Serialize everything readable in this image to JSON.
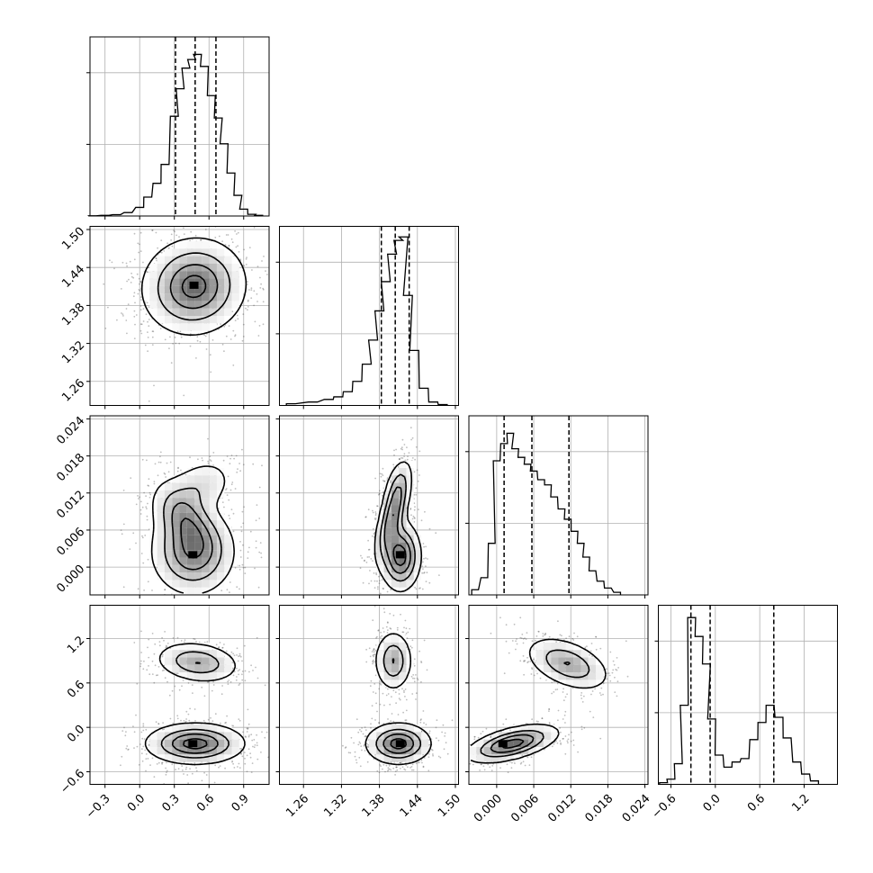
{
  "chart_data": {
    "type": "scatter",
    "layout": "corner",
    "grid": true,
    "legend": "none",
    "parameters": [
      {
        "ticks": [
          -0.3,
          0.0,
          0.3,
          0.6,
          0.9
        ],
        "tick_labels": [
          "−0.3",
          "0.0",
          "0.3",
          "0.6",
          "0.9"
        ],
        "range": [
          -0.43,
          1.12
        ],
        "quantiles": [
          0.31,
          0.48,
          0.66
        ],
        "hist": [
          [
            -0.41,
            0.001
          ],
          [
            -0.3,
            0.004
          ],
          [
            -0.2,
            0.008
          ],
          [
            -0.1,
            0.02
          ],
          [
            0.0,
            0.05
          ],
          [
            0.07,
            0.11
          ],
          [
            0.15,
            0.19
          ],
          [
            0.22,
            0.3
          ],
          [
            0.3,
            0.58
          ],
          [
            0.35,
            0.74
          ],
          [
            0.4,
            0.86
          ],
          [
            0.45,
            0.91
          ],
          [
            0.5,
            0.94
          ],
          [
            0.56,
            0.87
          ],
          [
            0.62,
            0.7
          ],
          [
            0.68,
            0.57
          ],
          [
            0.73,
            0.42
          ],
          [
            0.79,
            0.25
          ],
          [
            0.85,
            0.12
          ],
          [
            0.9,
            0.04
          ],
          [
            0.97,
            0.01
          ],
          [
            1.03,
            0.004
          ]
        ],
        "hist_ymax": 1.0
      },
      {
        "ticks": [
          1.26,
          1.32,
          1.38,
          1.44,
          1.5
        ],
        "tick_labels": [
          "1.26",
          "1.32",
          "1.38",
          "1.44",
          "1.50"
        ],
        "range": [
          1.222,
          1.505
        ],
        "quantiles": [
          1.383,
          1.405,
          1.427
        ],
        "hist": [
          [
            1.24,
            0.01
          ],
          [
            1.275,
            0.02
          ],
          [
            1.3,
            0.035
          ],
          [
            1.315,
            0.05
          ],
          [
            1.33,
            0.08
          ],
          [
            1.345,
            0.14
          ],
          [
            1.36,
            0.24
          ],
          [
            1.37,
            0.38
          ],
          [
            1.38,
            0.55
          ],
          [
            1.39,
            0.72
          ],
          [
            1.4,
            0.88
          ],
          [
            1.41,
            0.96
          ],
          [
            1.418,
            0.98
          ],
          [
            1.425,
            0.64
          ],
          [
            1.435,
            0.32
          ],
          [
            1.45,
            0.1
          ],
          [
            1.465,
            0.02
          ],
          [
            1.48,
            0.005
          ]
        ],
        "hist_ymax": 1.0
      },
      {
        "ticks": [
          0.0,
          0.006,
          0.012,
          0.018,
          0.024
        ],
        "tick_labels": [
          "0.000",
          "0.006",
          "0.012",
          "0.018",
          "0.024"
        ],
        "range": [
          -0.0045,
          0.0245
        ],
        "quantiles": [
          0.0012,
          0.0057,
          0.0117
        ],
        "hist": [
          [
            -0.0035,
            0.03
          ],
          [
            -0.002,
            0.1
          ],
          [
            -0.0008,
            0.3
          ],
          [
            0.0,
            0.78
          ],
          [
            0.0012,
            0.88
          ],
          [
            0.0022,
            0.94
          ],
          [
            0.003,
            0.85
          ],
          [
            0.004,
            0.8
          ],
          [
            0.005,
            0.76
          ],
          [
            0.006,
            0.72
          ],
          [
            0.0072,
            0.67
          ],
          [
            0.0083,
            0.64
          ],
          [
            0.0093,
            0.57
          ],
          [
            0.0105,
            0.5
          ],
          [
            0.0115,
            0.44
          ],
          [
            0.0126,
            0.37
          ],
          [
            0.0136,
            0.3
          ],
          [
            0.0145,
            0.22
          ],
          [
            0.0155,
            0.14
          ],
          [
            0.0168,
            0.08
          ],
          [
            0.018,
            0.04
          ],
          [
            0.0195,
            0.015
          ]
        ],
        "hist_ymax": 1.0
      },
      {
        "ticks": [
          -0.6,
          0.0,
          0.6,
          1.2
        ],
        "tick_labels": [
          "−0.6",
          "0.0",
          "0.6",
          "1.2"
        ],
        "range": [
          -0.77,
          1.65
        ],
        "quantiles": [
          -0.33,
          -0.07,
          0.79
        ],
        "hist": [
          [
            -0.7,
            0.01
          ],
          [
            -0.6,
            0.03
          ],
          [
            -0.5,
            0.12
          ],
          [
            -0.42,
            0.46
          ],
          [
            -0.32,
            0.97
          ],
          [
            -0.22,
            0.86
          ],
          [
            -0.12,
            0.7
          ],
          [
            -0.05,
            0.38
          ],
          [
            0.05,
            0.17
          ],
          [
            0.17,
            0.1
          ],
          [
            0.28,
            0.13
          ],
          [
            0.4,
            0.15
          ],
          [
            0.52,
            0.26
          ],
          [
            0.63,
            0.36
          ],
          [
            0.74,
            0.46
          ],
          [
            0.86,
            0.39
          ],
          [
            0.97,
            0.27
          ],
          [
            1.1,
            0.13
          ],
          [
            1.22,
            0.06
          ],
          [
            1.34,
            0.02
          ]
        ],
        "hist_ymax": 1.0
      }
    ],
    "pairs": [
      {
        "row": 1,
        "col": 0,
        "components": [
          {
            "cx": 0.47,
            "cy": 1.41,
            "sx": 0.2,
            "sy": 0.034,
            "rho": 0.05,
            "w": 1.0,
            "dens": [
              1.0,
              0.55,
              0.25,
              0.08
            ],
            "skew": 0.0
          }
        ],
        "contour_levels": [
          0.08,
          0.3,
          0.6,
          0.88
        ],
        "peaks": [
          [
            0.47,
            1.412
          ]
        ]
      },
      {
        "row": 2,
        "col": 0,
        "components": [
          {
            "cx": 0.46,
            "cy": 0.0025,
            "sx": 0.18,
            "sy": 0.0035,
            "rho": 0.0,
            "w": 1.0,
            "dens": [
              1.0
            ],
            "skew": 0.0
          },
          {
            "cx": 0.38,
            "cy": 0.008,
            "sx": 0.14,
            "sy": 0.003,
            "rho": -0.4,
            "w": 0.7,
            "dens": [
              1.0
            ],
            "skew": 0.0
          },
          {
            "cx": 0.52,
            "cy": 0.013,
            "sx": 0.16,
            "sy": 0.0025,
            "rho": 0.3,
            "w": 0.35,
            "dens": [
              1.0
            ],
            "skew": 0.0
          }
        ],
        "contour_levels": [
          0.12,
          0.35,
          0.6,
          0.85
        ],
        "peaks": [
          [
            0.46,
            0.002
          ]
        ]
      },
      {
        "row": 3,
        "col": 0,
        "components": [
          {
            "cx": 0.48,
            "cy": -0.22,
            "sx": 0.2,
            "sy": 0.13,
            "rho": 0.0,
            "w": 1.0,
            "dens": [
              1.0
            ],
            "skew": 0.0
          },
          {
            "cx": 0.5,
            "cy": 0.88,
            "sx": 0.17,
            "sy": 0.13,
            "rho": -0.2,
            "w": 0.62,
            "dens": [
              1.0
            ],
            "skew": 0.0
          }
        ],
        "contour_levels": [
          0.1,
          0.35,
          0.62,
          0.88
        ],
        "peaks": [
          [
            0.46,
            -0.22
          ]
        ]
      },
      {
        "row": 2,
        "col": 1,
        "components": [
          {
            "cx": 1.413,
            "cy": 0.0018,
            "sx": 0.016,
            "sy": 0.0028,
            "rho": 0.0,
            "w": 1.0,
            "dens": [
              1.0
            ],
            "skew": 0.0
          },
          {
            "cx": 1.4,
            "cy": 0.008,
            "sx": 0.013,
            "sy": 0.0035,
            "rho": 0.6,
            "w": 0.75,
            "dens": [
              1.0
            ],
            "skew": 0.0
          },
          {
            "cx": 1.41,
            "cy": 0.013,
            "sx": 0.012,
            "sy": 0.0025,
            "rho": 0.4,
            "w": 0.35,
            "dens": [
              1.0
            ],
            "skew": 0.0
          }
        ],
        "contour_levels": [
          0.12,
          0.35,
          0.6,
          0.85
        ],
        "peaks": [
          [
            1.413,
            0.002
          ]
        ]
      },
      {
        "row": 3,
        "col": 1,
        "components": [
          {
            "cx": 1.41,
            "cy": -0.22,
            "sx": 0.024,
            "sy": 0.13,
            "rho": 0.0,
            "w": 1.0,
            "dens": [
              1.0
            ],
            "skew": 0.0
          },
          {
            "cx": 1.402,
            "cy": 0.9,
            "sx": 0.014,
            "sy": 0.19,
            "rho": 0.0,
            "w": 0.62,
            "dens": [
              1.0
            ],
            "skew": 0.0
          }
        ],
        "contour_levels": [
          0.1,
          0.35,
          0.62,
          0.88
        ],
        "peaks": [
          [
            1.413,
            -0.22
          ]
        ]
      },
      {
        "row": 3,
        "col": 2,
        "components": [
          {
            "cx": 0.0025,
            "cy": -0.22,
            "sx": 0.0035,
            "sy": 0.12,
            "rho": 0.55,
            "w": 1.0,
            "dens": [
              1.0
            ],
            "skew": 0.0
          },
          {
            "cx": 0.0115,
            "cy": 0.86,
            "sx": 0.0032,
            "sy": 0.17,
            "rho": -0.45,
            "w": 0.62,
            "dens": [
              1.0
            ],
            "skew": 0.0
          }
        ],
        "contour_levels": [
          0.1,
          0.35,
          0.62,
          0.88
        ],
        "peaks": [
          [
            0.001,
            -0.22
          ]
        ]
      }
    ]
  }
}
